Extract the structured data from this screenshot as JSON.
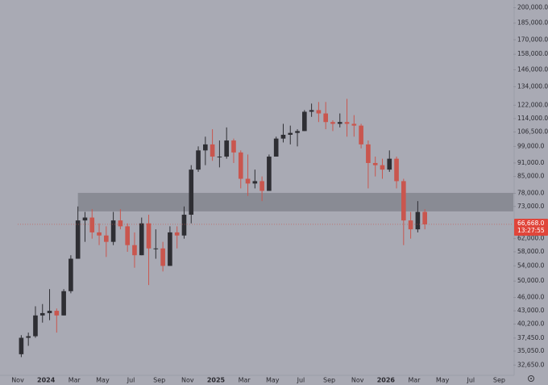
{
  "chart_data": {
    "type": "candlestick",
    "log_scale": true,
    "up_color": "#2e2e33",
    "down_color": "#c9564e",
    "background": "#a9aab4",
    "ylim": [
      31000,
      208000
    ],
    "yticks": [
      {
        "value": 200000,
        "label": "200,000.0"
      },
      {
        "value": 185000,
        "label": "185,000.0"
      },
      {
        "value": 170000,
        "label": "170,000.0"
      },
      {
        "value": 158000,
        "label": "158,000.0"
      },
      {
        "value": 146000,
        "label": "146,000.0"
      },
      {
        "value": 134000,
        "label": "134,000.0"
      },
      {
        "value": 122000,
        "label": "122,000.0"
      },
      {
        "value": 114000,
        "label": "114,000.0"
      },
      {
        "value": 106500,
        "label": "106,500.0"
      },
      {
        "value": 99000,
        "label": "99,000.0"
      },
      {
        "value": 91000,
        "label": "91,000.0"
      },
      {
        "value": 85000,
        "label": "85,000.0"
      },
      {
        "value": 78000,
        "label": "78,000.0"
      },
      {
        "value": 73000,
        "label": "73,000.0"
      },
      {
        "value": 62000,
        "label": "62,000.0"
      },
      {
        "value": 58000,
        "label": "58,000.0"
      },
      {
        "value": 54000,
        "label": "54,000.0"
      },
      {
        "value": 50000,
        "label": "50,000.0"
      },
      {
        "value": 46000,
        "label": "46,000.0"
      },
      {
        "value": 43000,
        "label": "43,000.0"
      },
      {
        "value": 40200,
        "label": "40,200.0"
      },
      {
        "value": 37450,
        "label": "37,450.0"
      },
      {
        "value": 35050,
        "label": "35,050.0"
      },
      {
        "value": 32650,
        "label": "32,650.0"
      }
    ],
    "categories": [
      "Nov",
      null,
      null,
      null,
      "2024",
      null,
      null,
      null,
      "Mar",
      null,
      null,
      null,
      "May",
      null,
      null,
      null,
      "Jul",
      null,
      null,
      null,
      "Sep",
      null,
      null,
      null,
      "Nov",
      null,
      null,
      null,
      "2025",
      null,
      null,
      null,
      "Mar",
      null,
      null,
      null,
      "May",
      null,
      null,
      null,
      "Jul",
      null,
      null,
      null,
      "Sep",
      null,
      null,
      null,
      "Nov",
      null,
      null,
      null,
      "2026",
      null,
      null,
      null,
      "Mar",
      null,
      null,
      null,
      "May",
      null,
      null,
      null,
      "Jul",
      null,
      null,
      null,
      "Sep",
      null
    ],
    "open": [
      34500,
      37500,
      37800,
      42000,
      42500,
      43000,
      42000,
      47500,
      56000,
      68000,
      69000,
      64000,
      63000,
      61000,
      68000,
      66000,
      60000,
      57000,
      67000,
      59000,
      59000,
      54000,
      64000,
      63000,
      70000,
      88000,
      97000,
      100000,
      94000,
      94000,
      102000,
      96000,
      84000,
      82000,
      83000,
      79000,
      94000,
      103000,
      105000,
      106000,
      107000,
      118000,
      119000,
      117000,
      112000,
      111000,
      112000,
      111000,
      110000,
      100000,
      91000,
      90000,
      88000,
      93000,
      83000,
      68000,
      65000,
      71000,
      null,
      null,
      null,
      null,
      null,
      null,
      null,
      null,
      null,
      null,
      null,
      null
    ],
    "high": [
      38000,
      38500,
      44000,
      44500,
      48000,
      43500,
      48000,
      57000,
      73000,
      71000,
      72000,
      67000,
      66000,
      71000,
      72000,
      67000,
      64000,
      69000,
      70000,
      65000,
      61000,
      66000,
      66000,
      73000,
      90000,
      99000,
      104000,
      108000,
      102000,
      109000,
      103000,
      97000,
      95000,
      88000,
      85000,
      95000,
      104000,
      111000,
      110000,
      108000,
      119000,
      123000,
      124000,
      124000,
      113000,
      117000,
      126000,
      116000,
      111000,
      102000,
      94000,
      93000,
      97000,
      94000,
      84000,
      71000,
      75000,
      72000,
      null,
      null,
      null,
      null,
      null,
      null,
      null,
      null,
      null,
      null,
      null,
      null
    ],
    "low": [
      34000,
      36000,
      37500,
      40500,
      41000,
      38500,
      42000,
      47000,
      56000,
      61000,
      62000,
      60000,
      56500,
      60000,
      65000,
      58000,
      53500,
      57000,
      49000,
      56000,
      52500,
      54000,
      59000,
      62000,
      67000,
      87000,
      90000,
      92000,
      89000,
      93000,
      91000,
      80000,
      77000,
      80000,
      75000,
      79000,
      94000,
      101000,
      100000,
      99000,
      107000,
      115000,
      112000,
      108000,
      107000,
      109000,
      104000,
      104000,
      98000,
      80000,
      85000,
      84000,
      87000,
      80000,
      60000,
      62000,
      64000,
      65000,
      null,
      null,
      null,
      null,
      null,
      null,
      null,
      null,
      null,
      null,
      null,
      null
    ],
    "close": [
      37500,
      37800,
      42000,
      42500,
      43000,
      42000,
      47500,
      56000,
      68000,
      69000,
      64000,
      63000,
      61000,
      68000,
      66000,
      60000,
      57000,
      67000,
      59000,
      59000,
      54000,
      64000,
      63000,
      70000,
      88000,
      97000,
      100000,
      94000,
      94000,
      102000,
      96000,
      84000,
      82000,
      83000,
      79000,
      94000,
      103000,
      105000,
      106000,
      107000,
      118000,
      119000,
      117000,
      112000,
      111000,
      112000,
      111000,
      110000,
      100000,
      91000,
      90000,
      88000,
      93000,
      83000,
      68000,
      65000,
      71000,
      66668,
      null,
      null,
      null,
      null,
      null,
      null,
      null,
      null,
      null,
      null,
      null,
      null
    ],
    "zone": {
      "low": 71200,
      "high": 78200
    },
    "last_price": {
      "value": 66668,
      "label": "66,668.0"
    },
    "countdown": "13:27:55"
  }
}
